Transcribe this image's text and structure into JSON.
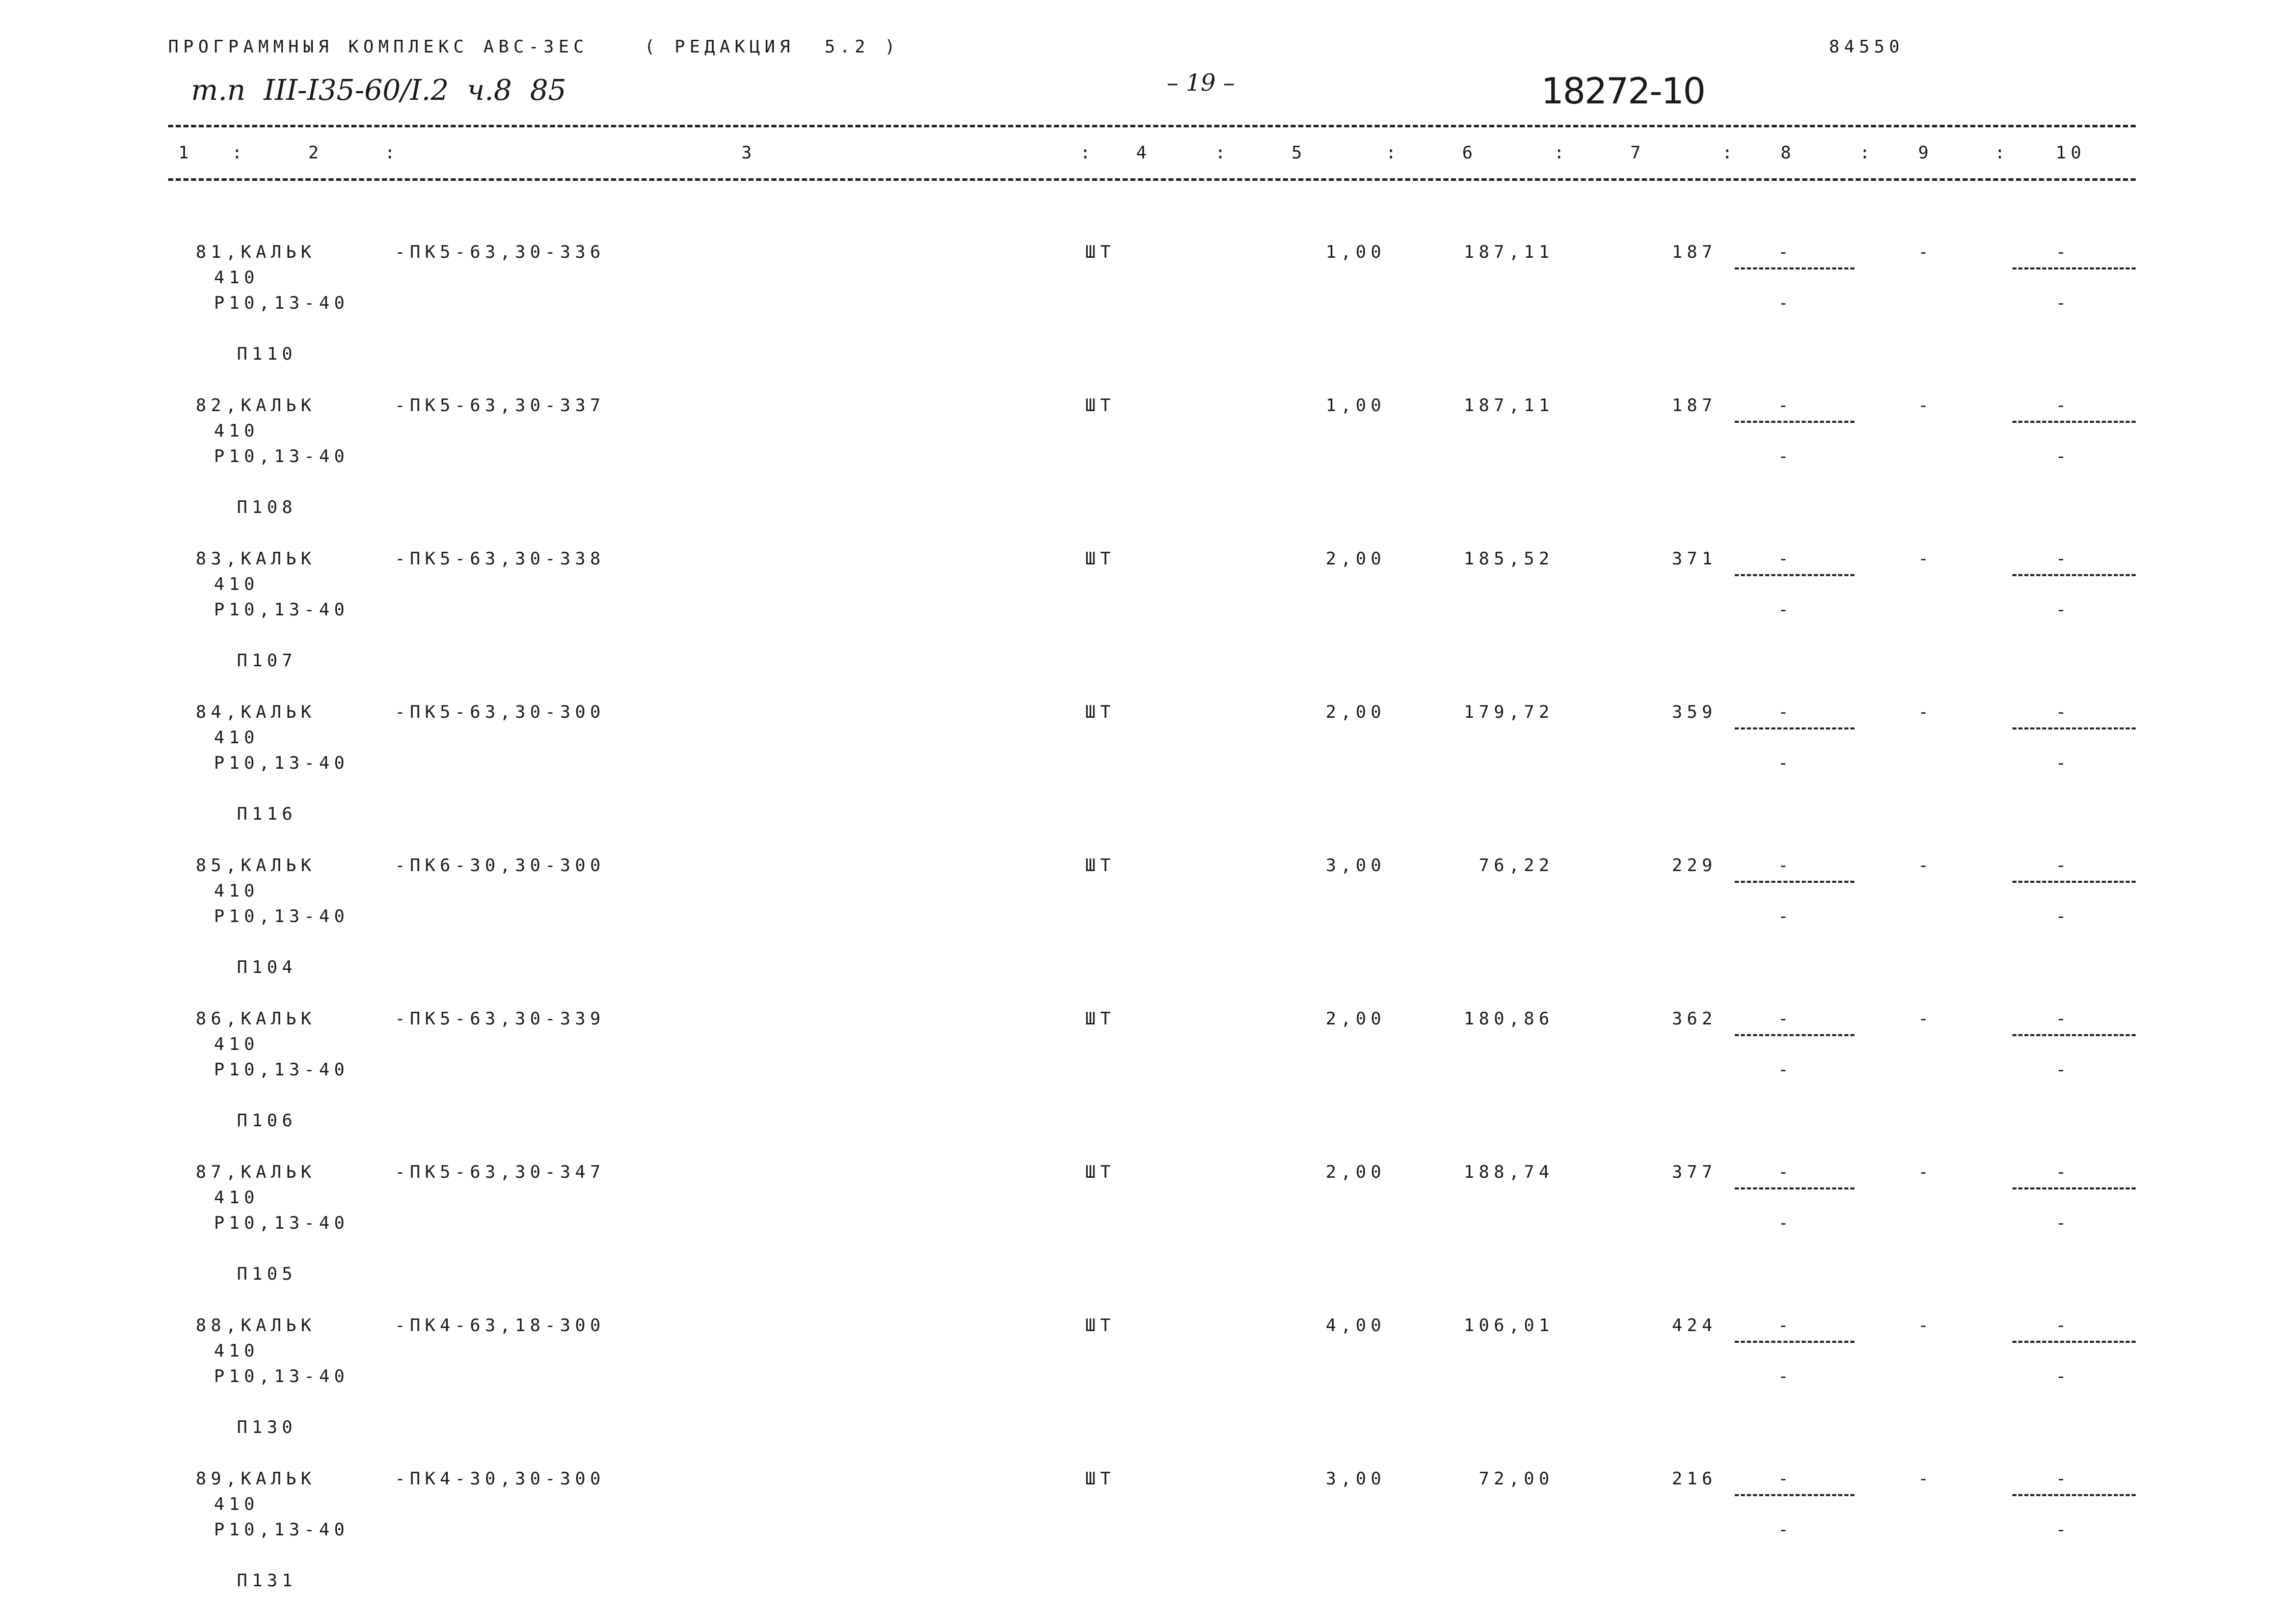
{
  "header": {
    "program_title": "ПРОГРАММНЫЯ КОМПЛЕКС АВС-3ЕС",
    "edition": "( РЕДАКЦИЯ  5.2 )",
    "number": "84550",
    "doc_ref": "т.п  III-I35-60/I.2  ч.8  85",
    "page": "– 19 –",
    "stamp": "18272-10"
  },
  "columns": [
    "1",
    "2",
    "3",
    "4",
    "5",
    "6",
    "7",
    "8",
    "9",
    "10"
  ],
  "rows": [
    {
      "num": "81,КАЛЬК",
      "code": "-ПК5-63,30-336",
      "unit": "ШТ",
      "qty": "1,00",
      "price": "187,11",
      "total": "187",
      "p": "П110"
    },
    {
      "num": "82,КАЛЬК",
      "code": "-ПК5-63,30-337",
      "unit": "ШТ",
      "qty": "1,00",
      "price": "187,11",
      "total": "187",
      "p": "П108"
    },
    {
      "num": "83,КАЛЬК",
      "code": "-ПК5-63,30-338",
      "unit": "ШТ",
      "qty": "2,00",
      "price": "185,52",
      "total": "371",
      "p": "П107"
    },
    {
      "num": "84,КАЛЬК",
      "code": "-ПК5-63,30-300",
      "unit": "ШТ",
      "qty": "2,00",
      "price": "179,72",
      "total": "359",
      "p": "П116"
    },
    {
      "num": "85,КАЛЬК",
      "code": "-ПК6-30,30-300",
      "unit": "ШТ",
      "qty": "3,00",
      "price": "76,22",
      "total": "229",
      "p": "П104"
    },
    {
      "num": "86,КАЛЬК",
      "code": "-ПК5-63,30-339",
      "unit": "ШТ",
      "qty": "2,00",
      "price": "180,86",
      "total": "362",
      "p": "П106"
    },
    {
      "num": "87,КАЛЬК",
      "code": "-ПК5-63,30-347",
      "unit": "ШТ",
      "qty": "2,00",
      "price": "188,74",
      "total": "377",
      "p": "П105"
    },
    {
      "num": "88,КАЛЬК",
      "code": "-ПК4-63,18-300",
      "unit": "ШТ",
      "qty": "4,00",
      "price": "106,01",
      "total": "424",
      "p": "П130"
    },
    {
      "num": "89,КАЛЬК",
      "code": "-ПК4-30,30-300",
      "unit": "ШТ",
      "qty": "3,00",
      "price": "72,00",
      "total": "216",
      "p": "П131"
    }
  ],
  "common": {
    "sub1": "410",
    "sub2": "Р10,13-40",
    "dash": "-"
  }
}
